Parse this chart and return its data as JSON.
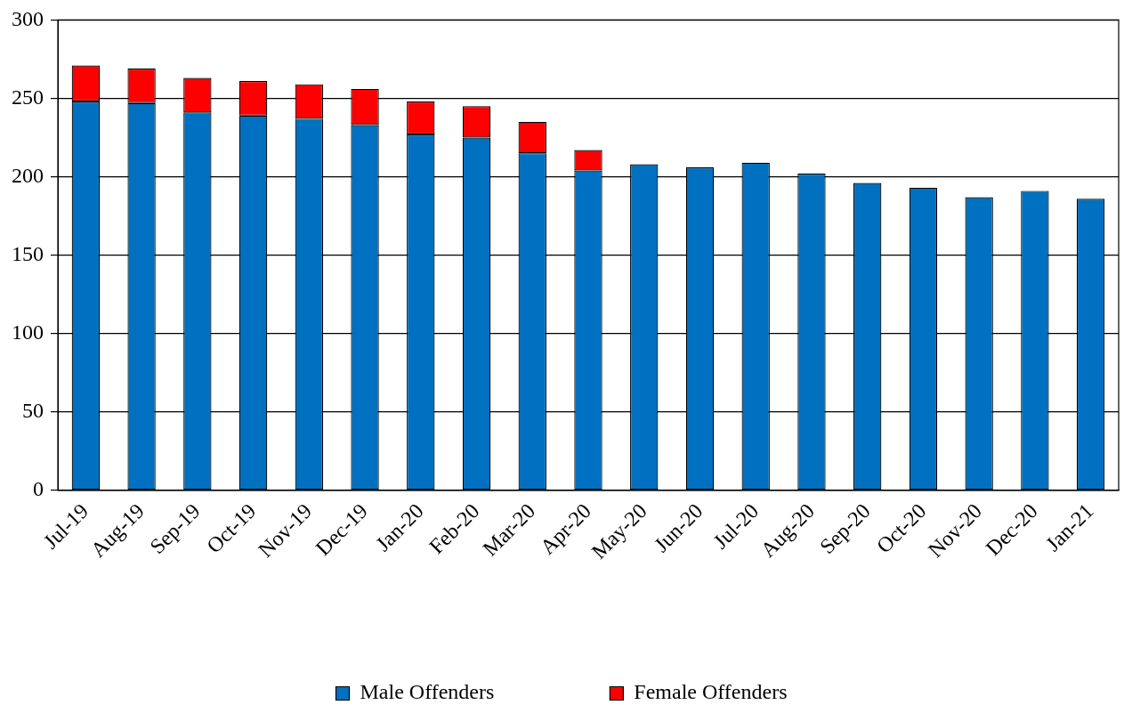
{
  "chart_data": {
    "type": "bar",
    "stacked": true,
    "categories": [
      "Jul-19",
      "Aug-19",
      "Sep-19",
      "Oct-19",
      "Nov-19",
      "Dec-19",
      "Jan-20",
      "Feb-20",
      "Mar-20",
      "Apr-20",
      "May-20",
      "Jun-20",
      "Jul-20",
      "Aug-20",
      "Sep-20",
      "Oct-20",
      "Nov-20",
      "Dec-20",
      "Jan-21"
    ],
    "series": [
      {
        "name": "Male Offenders",
        "color": "#0070c0",
        "values": [
          248,
          247,
          241,
          239,
          237,
          233,
          227,
          225,
          215,
          204,
          208,
          206,
          209,
          202,
          196,
          193,
          187,
          191,
          186
        ]
      },
      {
        "name": "Female Offenders",
        "color": "#ff0000",
        "values": [
          23,
          22,
          22,
          22,
          22,
          23,
          21,
          20,
          20,
          13,
          null,
          null,
          null,
          null,
          null,
          null,
          null,
          null,
          null
        ]
      }
    ],
    "ylim": [
      0,
      300
    ],
    "yticks": [
      0,
      50,
      100,
      150,
      200,
      250,
      300
    ],
    "grid": "y",
    "legend": "bottom"
  }
}
